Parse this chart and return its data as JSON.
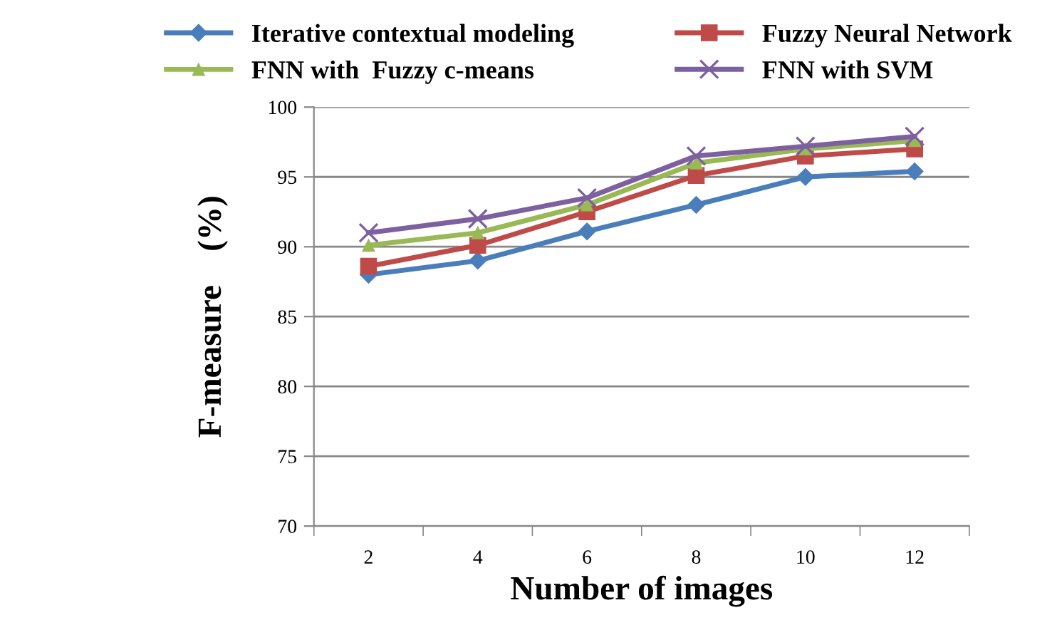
{
  "chart_data": {
    "type": "line",
    "xlabel": "Number of images",
    "ylabel": "F-measure    (%)",
    "categories": [
      "2",
      "4",
      "6",
      "8",
      "10",
      "12"
    ],
    "ylim": [
      70,
      100
    ],
    "yticks": [
      70,
      75,
      80,
      85,
      90,
      95,
      100
    ],
    "grid": "y",
    "legend": "top",
    "series": [
      {
        "name": "Iterative contextual modeling",
        "color": "#4a7ebb",
        "marker": "diamond",
        "values": [
          88,
          89,
          91.1,
          93,
          95,
          95.4
        ]
      },
      {
        "name": "Fuzzy Neural Network",
        "color": "#be4b48",
        "marker": "square",
        "values": [
          88.6,
          90.1,
          92.5,
          95.1,
          96.5,
          97
        ]
      },
      {
        "name": "FNN with  Fuzzy c-means",
        "color": "#98b954",
        "marker": "triangle",
        "values": [
          90.1,
          91,
          93,
          96,
          97,
          97.6
        ]
      },
      {
        "name": "FNN with SVM",
        "color": "#7d60a0",
        "marker": "cross",
        "values": [
          91,
          92,
          93.5,
          96.5,
          97.2,
          97.9
        ]
      }
    ]
  }
}
